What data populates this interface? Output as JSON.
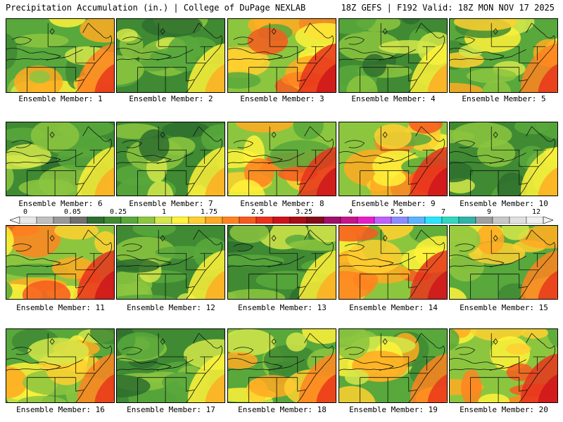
{
  "header": {
    "left": "Precipitation Accumulation (in.) | College of DuPage NEXLAB",
    "right": "18Z GEFS | F192 Valid: 18Z MON NOV 17 2025"
  },
  "colorbar": {
    "labels": [
      "0",
      "0.05",
      "0.25",
      "1",
      "1.75",
      "2.5",
      "3.25",
      "4",
      "5.5",
      "7",
      "9",
      "12"
    ],
    "colors": [
      "#e8e8e8",
      "#c0c0c0",
      "#989898",
      "#707070",
      "#2e6e2e",
      "#3f8a32",
      "#58a83c",
      "#8cc63f",
      "#d4e84a",
      "#fff23a",
      "#ffd030",
      "#ffaa22",
      "#ff8420",
      "#f85a1e",
      "#e8321c",
      "#cc141a",
      "#a80e16",
      "#840c18",
      "#a0106a",
      "#c8148c",
      "#e81ec8",
      "#c060ff",
      "#8c8cff",
      "#5ab4ff",
      "#28e6ff",
      "#30d8c0",
      "#30b4a8",
      "#a0a0a0",
      "#c8c8c8",
      "#e0e0e0",
      "#f0f0f0"
    ]
  },
  "members": [
    {
      "label": "Ensemble Member: 1",
      "tone": "medium"
    },
    {
      "label": "Ensemble Member: 2",
      "tone": "low"
    },
    {
      "label": "Ensemble Member: 3",
      "tone": "high"
    },
    {
      "label": "Ensemble Member: 4",
      "tone": "low"
    },
    {
      "label": "Ensemble Member: 5",
      "tone": "medium"
    },
    {
      "label": "Ensemble Member: 6",
      "tone": "low"
    },
    {
      "label": "Ensemble Member: 7",
      "tone": "low"
    },
    {
      "label": "Ensemble Member: 8",
      "tone": "high"
    },
    {
      "label": "Ensemble Member: 9",
      "tone": "high"
    },
    {
      "label": "Ensemble Member: 10",
      "tone": "low"
    },
    {
      "label": "Ensemble Member: 11",
      "tone": "high"
    },
    {
      "label": "Ensemble Member: 12",
      "tone": "low"
    },
    {
      "label": "Ensemble Member: 13",
      "tone": "low"
    },
    {
      "label": "Ensemble Member: 14",
      "tone": "high"
    },
    {
      "label": "Ensemble Member: 15",
      "tone": "medium"
    },
    {
      "label": "Ensemble Member: 16",
      "tone": "medium"
    },
    {
      "label": "Ensemble Member: 17",
      "tone": "low"
    },
    {
      "label": "Ensemble Member: 18",
      "tone": "medium"
    },
    {
      "label": "Ensemble Member: 19",
      "tone": "medium"
    },
    {
      "label": "Ensemble Member: 20",
      "tone": "high"
    }
  ]
}
